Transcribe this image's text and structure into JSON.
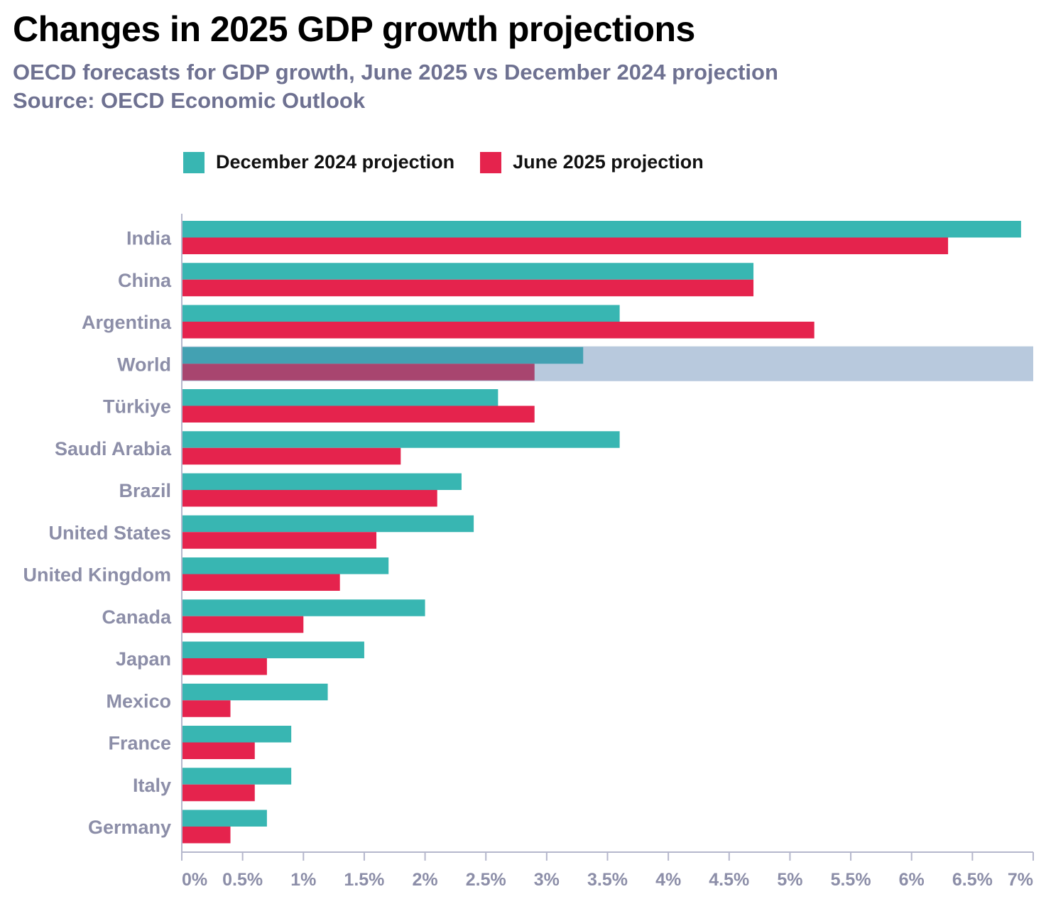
{
  "header": {
    "title": "Changes in 2025 GDP growth projections",
    "subtitle": "OECD forecasts for GDP growth, June 2025 vs December 2024 projection",
    "source": "Source: OECD Economic Outlook"
  },
  "colors": {
    "dec2024": "#38b6b2",
    "jun2025": "#e5234d",
    "highlight": "#b8c9dd",
    "dec2024_highlight": "#43a1b2",
    "jun2025_highlight": "#a8456f",
    "axis": "#b5b7cc"
  },
  "chart_data": {
    "type": "bar",
    "orientation": "horizontal",
    "title": "Changes in 2025 GDP growth projections",
    "xlabel": "",
    "ylabel": "",
    "xlim": [
      0,
      7
    ],
    "x_ticks": [
      0,
      0.5,
      1,
      1.5,
      2,
      2.5,
      3,
      3.5,
      4,
      4.5,
      5,
      5.5,
      6,
      6.5,
      7
    ],
    "x_tick_labels": [
      "0%",
      "0.5%",
      "1%",
      "1.5%",
      "2%",
      "2.5%",
      "3%",
      "3.5%",
      "4%",
      "4.5%",
      "5%",
      "5.5%",
      "6%",
      "6.5%",
      "7%"
    ],
    "legend_position": "top",
    "highlighted_category": "World",
    "categories": [
      "India",
      "China",
      "Argentina",
      "World",
      "Türkiye",
      "Saudi Arabia",
      "Brazil",
      "United States",
      "United Kingdom",
      "Canada",
      "Japan",
      "Mexico",
      "France",
      "Italy",
      "Germany"
    ],
    "series": [
      {
        "name": "December 2024 projection",
        "values": [
          6.9,
          4.7,
          3.6,
          3.3,
          2.6,
          3.6,
          2.3,
          2.4,
          1.7,
          2.0,
          1.5,
          1.2,
          0.9,
          0.9,
          0.7
        ]
      },
      {
        "name": "June 2025 projection",
        "values": [
          6.3,
          4.7,
          5.2,
          2.9,
          2.9,
          1.8,
          2.1,
          1.6,
          1.3,
          1.0,
          0.7,
          0.4,
          0.6,
          0.6,
          0.4
        ]
      }
    ]
  }
}
